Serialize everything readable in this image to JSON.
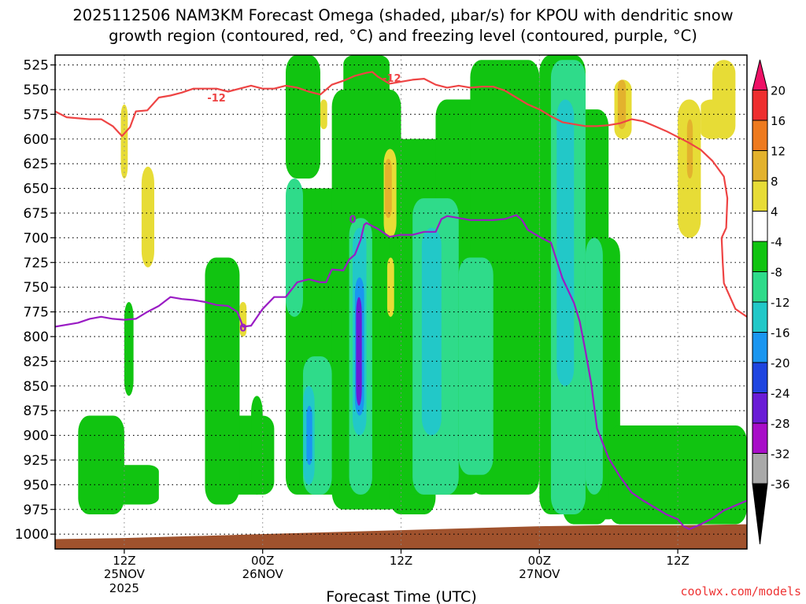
{
  "chart_data": {
    "type": "heatmap",
    "title_line1": "2025112506 NAM3KM Forecast Omega (shaded, μbar/s) for KPOU with dendritic snow",
    "title_line2": "growth region (contoured, red, °C) and freezing level (contoured, purple, °C)",
    "xlabel": "Forecast Time (UTC)",
    "watermark": "coolwx.com/models",
    "x_range_hours": [
      0,
      60
    ],
    "y_levels": [
      "525",
      "550",
      "575",
      "600",
      "625",
      "650",
      "675",
      "700",
      "725",
      "750",
      "775",
      "800",
      "825",
      "850",
      "875",
      "900",
      "925",
      "950",
      "975",
      "1000"
    ],
    "y_range_hpa": [
      515,
      1015
    ],
    "x_ticks": [
      {
        "hour": 6,
        "label": "12Z",
        "sub": "25NOV",
        "year": "2025"
      },
      {
        "hour": 18,
        "label": "00Z",
        "sub": "26NOV",
        "year": ""
      },
      {
        "hour": 30,
        "label": "12Z",
        "sub": "",
        "year": ""
      },
      {
        "hour": 42,
        "label": "00Z",
        "sub": "27NOV",
        "year": ""
      },
      {
        "hour": 54,
        "label": "12Z",
        "sub": "",
        "year": ""
      }
    ],
    "colorbar": {
      "labels": [
        "20",
        "16",
        "12",
        "8",
        "4",
        "-4",
        "-8",
        "-12",
        "-16",
        "-20",
        "-24",
        "-28",
        "-32",
        "-36"
      ],
      "colors": [
        "#ee1166",
        "#ee2e2e",
        "#ee7a1e",
        "#e3b22d",
        "#e7dc36",
        "#ffffff",
        "#11c411",
        "#2fdb8a",
        "#22c8c8",
        "#1a96f0",
        "#1f45e0",
        "#6a1cd6",
        "#a80ec8",
        "#a9a9a9",
        "#000000"
      ]
    },
    "dgz_contour": {
      "label": "-12",
      "color": "#ee4444",
      "points": [
        [
          0,
          572
        ],
        [
          1,
          578
        ],
        [
          3,
          580
        ],
        [
          4,
          580
        ],
        [
          5,
          587
        ],
        [
          5.8,
          597
        ],
        [
          6.5,
          588
        ],
        [
          7,
          572
        ],
        [
          8,
          571
        ],
        [
          9,
          558
        ],
        [
          10,
          556
        ],
        [
          11,
          553
        ],
        [
          12,
          549
        ],
        [
          13,
          549
        ],
        [
          14,
          549
        ],
        [
          15,
          552
        ],
        [
          16,
          549
        ],
        [
          17,
          546
        ],
        [
          18,
          549
        ],
        [
          19,
          549
        ],
        [
          20,
          546
        ],
        [
          21,
          548
        ],
        [
          22,
          552
        ],
        [
          23,
          555
        ],
        [
          24,
          545
        ],
        [
          25,
          541
        ],
        [
          26,
          536
        ],
        [
          27,
          533
        ],
        [
          27.5,
          532
        ],
        [
          28,
          537
        ],
        [
          29,
          544
        ],
        [
          30,
          542
        ],
        [
          31,
          540
        ],
        [
          32,
          539
        ],
        [
          33,
          545
        ],
        [
          34,
          548
        ],
        [
          35,
          546
        ],
        [
          36,
          548
        ],
        [
          37,
          547
        ],
        [
          38,
          547
        ],
        [
          39,
          551
        ],
        [
          40,
          558
        ],
        [
          41,
          565
        ],
        [
          42,
          570
        ],
        [
          43,
          577
        ],
        [
          44,
          583
        ],
        [
          45,
          585
        ],
        [
          46,
          587
        ],
        [
          47,
          587
        ],
        [
          48,
          586
        ],
        [
          49,
          584
        ],
        [
          50,
          580
        ],
        [
          51,
          582
        ],
        [
          52,
          587
        ],
        [
          53,
          592
        ],
        [
          54,
          598
        ],
        [
          55,
          604
        ],
        [
          56,
          611
        ],
        [
          57,
          622
        ],
        [
          58,
          638
        ],
        [
          58.3,
          660
        ],
        [
          58.2,
          690
        ],
        [
          57.8,
          700
        ],
        [
          57.9,
          725
        ],
        [
          58,
          746
        ],
        [
          59,
          772
        ],
        [
          60,
          780
        ]
      ]
    },
    "freezing_contour": {
      "label": "0",
      "color": "#9a1cc4",
      "points": [
        [
          0,
          790
        ],
        [
          2,
          786
        ],
        [
          3,
          782
        ],
        [
          4,
          780
        ],
        [
          5,
          782
        ],
        [
          6,
          783
        ],
        [
          7,
          782
        ],
        [
          8,
          775
        ],
        [
          9,
          769
        ],
        [
          10,
          760
        ],
        [
          11,
          762
        ],
        [
          12,
          763
        ],
        [
          13,
          765
        ],
        [
          14,
          768
        ],
        [
          15,
          769
        ],
        [
          15.8,
          775
        ],
        [
          16.3,
          790
        ],
        [
          17,
          789
        ],
        [
          18,
          772
        ],
        [
          19,
          760
        ],
        [
          20,
          760
        ],
        [
          21,
          745
        ],
        [
          22,
          742
        ],
        [
          23,
          745
        ],
        [
          23.5,
          745
        ],
        [
          24,
          732
        ],
        [
          25,
          733
        ],
        [
          25.5,
          722
        ],
        [
          26,
          717
        ],
        [
          26.5,
          702
        ],
        [
          26.8,
          687
        ],
        [
          27,
          685
        ],
        [
          28,
          691
        ],
        [
          29,
          699
        ],
        [
          30,
          697
        ],
        [
          31,
          697
        ],
        [
          32,
          694
        ],
        [
          33,
          694
        ],
        [
          33.5,
          681
        ],
        [
          34,
          678
        ],
        [
          35,
          680
        ],
        [
          36,
          682
        ],
        [
          37,
          682
        ],
        [
          38,
          682
        ],
        [
          39,
          681
        ],
        [
          40,
          677
        ],
        [
          40.5,
          682
        ],
        [
          41,
          692
        ],
        [
          42,
          699
        ],
        [
          42.5,
          702
        ],
        [
          43,
          705
        ],
        [
          44,
          741
        ],
        [
          45,
          766
        ],
        [
          45.5,
          785
        ],
        [
          46,
          815
        ],
        [
          46.5,
          848
        ],
        [
          47,
          893
        ],
        [
          48,
          923
        ],
        [
          49,
          942
        ],
        [
          50,
          958
        ],
        [
          51,
          966
        ],
        [
          52,
          973
        ],
        [
          53,
          980
        ],
        [
          54,
          985
        ],
        [
          54.5,
          992
        ],
        [
          55,
          995
        ],
        [
          56,
          990
        ],
        [
          57,
          984
        ],
        [
          58,
          976
        ],
        [
          60,
          966
        ]
      ]
    },
    "terrain_color": "#a0522d",
    "shading": [
      {
        "band": "-8",
        "rects": [
          [
            20,
            23,
            515,
            640
          ],
          [
            25,
            29,
            515,
            570
          ],
          [
            20,
            26,
            650,
            960
          ],
          [
            24,
            30,
            550,
            975
          ],
          [
            29,
            33,
            600,
            980
          ],
          [
            30,
            37,
            600,
            960
          ],
          [
            33,
            40,
            560,
            940
          ],
          [
            36,
            42,
            520,
            960
          ],
          [
            42,
            46,
            515,
            980
          ],
          [
            44,
            48,
            570,
            990
          ],
          [
            44,
            49,
            700,
            985
          ],
          [
            48,
            60,
            890,
            990
          ],
          [
            14,
            19,
            880,
            960
          ],
          [
            13,
            16,
            720,
            970
          ],
          [
            4.5,
            9,
            930,
            970
          ],
          [
            2,
            6,
            880,
            980
          ],
          [
            6,
            6.8,
            765,
            860
          ],
          [
            17,
            18,
            860,
            960
          ]
        ]
      },
      {
        "band": "-12",
        "rects": [
          [
            25.5,
            27.5,
            680,
            960
          ],
          [
            20,
            21.5,
            640,
            780
          ],
          [
            21.5,
            24,
            820,
            960
          ],
          [
            31,
            35,
            660,
            960
          ],
          [
            35,
            38,
            720,
            940
          ],
          [
            43,
            46,
            520,
            980
          ],
          [
            46,
            47.5,
            700,
            960
          ]
        ]
      },
      {
        "band": "-16",
        "rects": [
          [
            25.8,
            27,
            690,
            900
          ],
          [
            21.5,
            22.5,
            850,
            950
          ],
          [
            31.8,
            33.5,
            690,
            900
          ],
          [
            43.5,
            45,
            560,
            850
          ]
        ]
      },
      {
        "band": "-20",
        "rects": [
          [
            26,
            26.8,
            740,
            880
          ],
          [
            21.8,
            22.3,
            870,
            930
          ]
        ]
      },
      {
        "band": "-28",
        "rects": [
          [
            26.1,
            26.6,
            760,
            870
          ]
        ]
      },
      {
        "band": "4",
        "rects": [
          [
            5.7,
            6.3,
            565,
            640
          ],
          [
            7.5,
            8.6,
            628,
            730
          ],
          [
            16,
            16.6,
            765,
            800
          ],
          [
            23,
            23.6,
            560,
            590
          ],
          [
            28.5,
            29.6,
            610,
            700
          ],
          [
            48.5,
            50,
            540,
            600
          ],
          [
            54,
            56,
            560,
            700
          ],
          [
            56,
            58,
            560,
            600
          ],
          [
            57,
            59,
            520,
            600
          ],
          [
            28.8,
            29.4,
            720,
            780
          ]
        ]
      },
      {
        "band": "8",
        "rects": [
          [
            28.6,
            29.2,
            620,
            680
          ],
          [
            48.8,
            49.5,
            540,
            590
          ],
          [
            54.8,
            55.3,
            580,
            640
          ]
        ]
      }
    ]
  }
}
